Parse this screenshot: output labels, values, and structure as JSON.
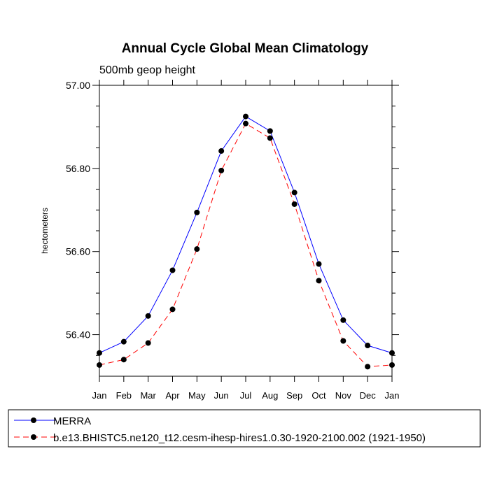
{
  "chart_data": {
    "type": "line",
    "title": "Annual Cycle Global Mean Climatology",
    "subtitle": "500mb geop height",
    "xlabel": "",
    "ylabel": "hectometers",
    "categories": [
      "Jan",
      "Feb",
      "Mar",
      "Apr",
      "May",
      "Jun",
      "Jul",
      "Aug",
      "Sep",
      "Oct",
      "Nov",
      "Dec",
      "Jan"
    ],
    "ylim": [
      56.3,
      57.0
    ],
    "yticks": [
      56.4,
      56.6,
      56.8,
      57.0
    ],
    "ytick_labels": [
      "56.40",
      "56.60",
      "56.80",
      "57.00"
    ],
    "minor_y_step": 0.05,
    "grid": false,
    "legend_position": "bottom",
    "series": [
      {
        "name": "MERRA",
        "color": "#0000ff",
        "line_style": "solid",
        "marker": "filled-circle",
        "values": [
          56.356,
          56.383,
          56.445,
          56.555,
          56.694,
          56.842,
          56.925,
          56.89,
          56.742,
          56.57,
          56.435,
          56.374,
          56.356
        ]
      },
      {
        "name": "b.e13.BHISTC5.ne120_t12.cesm-ihesp-hires1.0.30-1920-2100.002 (1921-1950)",
        "color": "#ff0000",
        "line_style": "dashed",
        "marker": "filled-circle",
        "values": [
          56.327,
          56.34,
          56.38,
          56.461,
          56.606,
          56.795,
          56.908,
          56.873,
          56.714,
          56.53,
          56.385,
          56.323,
          56.327
        ]
      }
    ]
  }
}
